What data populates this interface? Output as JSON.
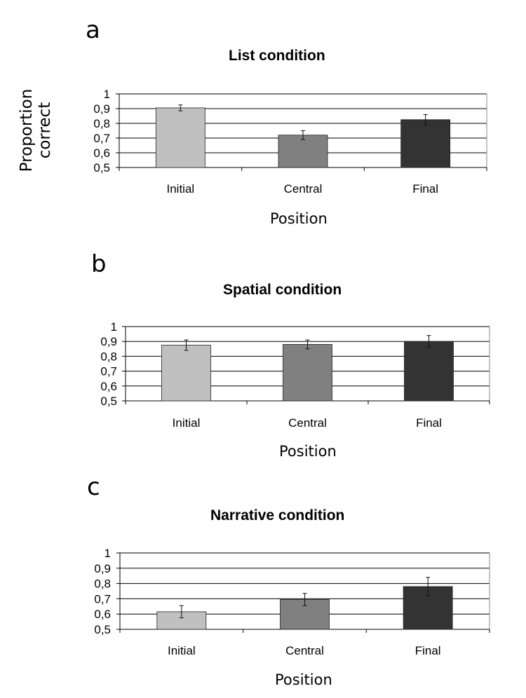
{
  "chart_data": [
    {
      "type": "bar",
      "panel": "a",
      "title": "List condition",
      "xlabel": "Position",
      "ylabel": "Proportion correct",
      "categories": [
        "Initial",
        "Central",
        "Final"
      ],
      "values": [
        0.905,
        0.72,
        0.825
      ],
      "errors": [
        0.02,
        0.03,
        0.035
      ],
      "colors": [
        "#c0c0c0",
        "#808080",
        "#333333"
      ],
      "ylim": [
        0.5,
        1
      ],
      "yticks": [
        "0,5",
        "0,6",
        "0,7",
        "0,8",
        "0,9",
        "1"
      ],
      "grid": true
    },
    {
      "type": "bar",
      "panel": "b",
      "title": "Spatial condition",
      "xlabel": "Position",
      "ylabel": "",
      "categories": [
        "Initial",
        "Central",
        "Final"
      ],
      "values": [
        0.875,
        0.88,
        0.9
      ],
      "errors": [
        0.035,
        0.03,
        0.04
      ],
      "colors": [
        "#c0c0c0",
        "#808080",
        "#333333"
      ],
      "ylim": [
        0.5,
        1
      ],
      "yticks": [
        "0,5",
        "0,6",
        "0,7",
        "0,8",
        "0,9",
        "1"
      ],
      "grid": true
    },
    {
      "type": "bar",
      "panel": "c",
      "title": "Narrative condition",
      "xlabel": "Position",
      "ylabel": "",
      "categories": [
        "Initial",
        "Central",
        "Final"
      ],
      "values": [
        0.615,
        0.695,
        0.78
      ],
      "errors": [
        0.04,
        0.04,
        0.06
      ],
      "colors": [
        "#c0c0c0",
        "#808080",
        "#333333"
      ],
      "ylim": [
        0.5,
        1
      ],
      "yticks": [
        "0,5",
        "0,6",
        "0,7",
        "0,8",
        "0,9",
        "1"
      ],
      "grid": true
    }
  ]
}
